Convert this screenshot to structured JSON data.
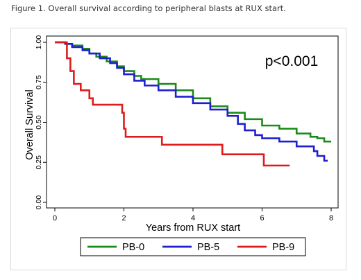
{
  "caption": "Figure 1. Overall survival according to peripheral blasts at RUX start.",
  "chart_data": {
    "type": "line",
    "step": true,
    "xlabel": "Years from RUX start",
    "ylabel": "Overall Survival",
    "xlim": [
      0,
      8
    ],
    "ylim": [
      0,
      1
    ],
    "x_ticks": [
      "0",
      "2",
      "4",
      "6",
      "8"
    ],
    "x_tick_values": [
      0,
      2,
      4,
      6,
      8
    ],
    "y_ticks": [
      "0.00",
      "0.25",
      "0.50",
      "0.75",
      "1.00"
    ],
    "y_tick_values": [
      0,
      0.25,
      0.5,
      0.75,
      1
    ],
    "grid": false,
    "legend_position": "bottom",
    "annotation": "p<0.001",
    "series": [
      {
        "name": "PB-0",
        "color": "#1a8a1a",
        "points": [
          [
            0,
            1
          ],
          [
            0.2,
            1
          ],
          [
            0.3,
            0.99
          ],
          [
            0.5,
            0.98
          ],
          [
            0.8,
            0.96
          ],
          [
            1.0,
            0.93
          ],
          [
            1.2,
            0.91
          ],
          [
            1.5,
            0.88
          ],
          [
            1.8,
            0.85
          ],
          [
            2.0,
            0.82
          ],
          [
            2.3,
            0.79
          ],
          [
            2.5,
            0.77
          ],
          [
            3.0,
            0.74
          ],
          [
            3.5,
            0.7
          ],
          [
            4.0,
            0.65
          ],
          [
            4.5,
            0.6
          ],
          [
            5.0,
            0.56
          ],
          [
            5.5,
            0.52
          ],
          [
            6.0,
            0.48
          ],
          [
            6.5,
            0.46
          ],
          [
            7.0,
            0.43
          ],
          [
            7.4,
            0.41
          ],
          [
            7.6,
            0.4
          ],
          [
            7.8,
            0.38
          ],
          [
            8.0,
            0.38
          ]
        ]
      },
      {
        "name": "PB-5",
        "color": "#1f1fd0",
        "points": [
          [
            0,
            1
          ],
          [
            0.3,
            0.99
          ],
          [
            0.5,
            0.97
          ],
          [
            0.8,
            0.95
          ],
          [
            1.0,
            0.93
          ],
          [
            1.3,
            0.9
          ],
          [
            1.6,
            0.87
          ],
          [
            1.8,
            0.84
          ],
          [
            2.0,
            0.8
          ],
          [
            2.3,
            0.76
          ],
          [
            2.6,
            0.73
          ],
          [
            3.0,
            0.7
          ],
          [
            3.5,
            0.66
          ],
          [
            4.0,
            0.62
          ],
          [
            4.5,
            0.58
          ],
          [
            5.0,
            0.54
          ],
          [
            5.3,
            0.49
          ],
          [
            5.5,
            0.45
          ],
          [
            5.8,
            0.42
          ],
          [
            6.0,
            0.4
          ],
          [
            6.5,
            0.38
          ],
          [
            7.0,
            0.35
          ],
          [
            7.5,
            0.32
          ],
          [
            7.6,
            0.29
          ],
          [
            7.8,
            0.26
          ],
          [
            7.9,
            0.26
          ]
        ]
      },
      {
        "name": "PB-9",
        "color": "#e01b1b",
        "points": [
          [
            0,
            1
          ],
          [
            0.3,
            1
          ],
          [
            0.35,
            0.9
          ],
          [
            0.45,
            0.82
          ],
          [
            0.55,
            0.74
          ],
          [
            0.75,
            0.7
          ],
          [
            1.0,
            0.65
          ],
          [
            1.1,
            0.61
          ],
          [
            1.75,
            0.61
          ],
          [
            1.95,
            0.56
          ],
          [
            2.0,
            0.46
          ],
          [
            2.05,
            0.41
          ],
          [
            3.05,
            0.41
          ],
          [
            3.1,
            0.36
          ],
          [
            4.8,
            0.36
          ],
          [
            4.85,
            0.3
          ],
          [
            6.0,
            0.3
          ],
          [
            6.05,
            0.23
          ],
          [
            6.8,
            0.23
          ]
        ]
      }
    ]
  }
}
